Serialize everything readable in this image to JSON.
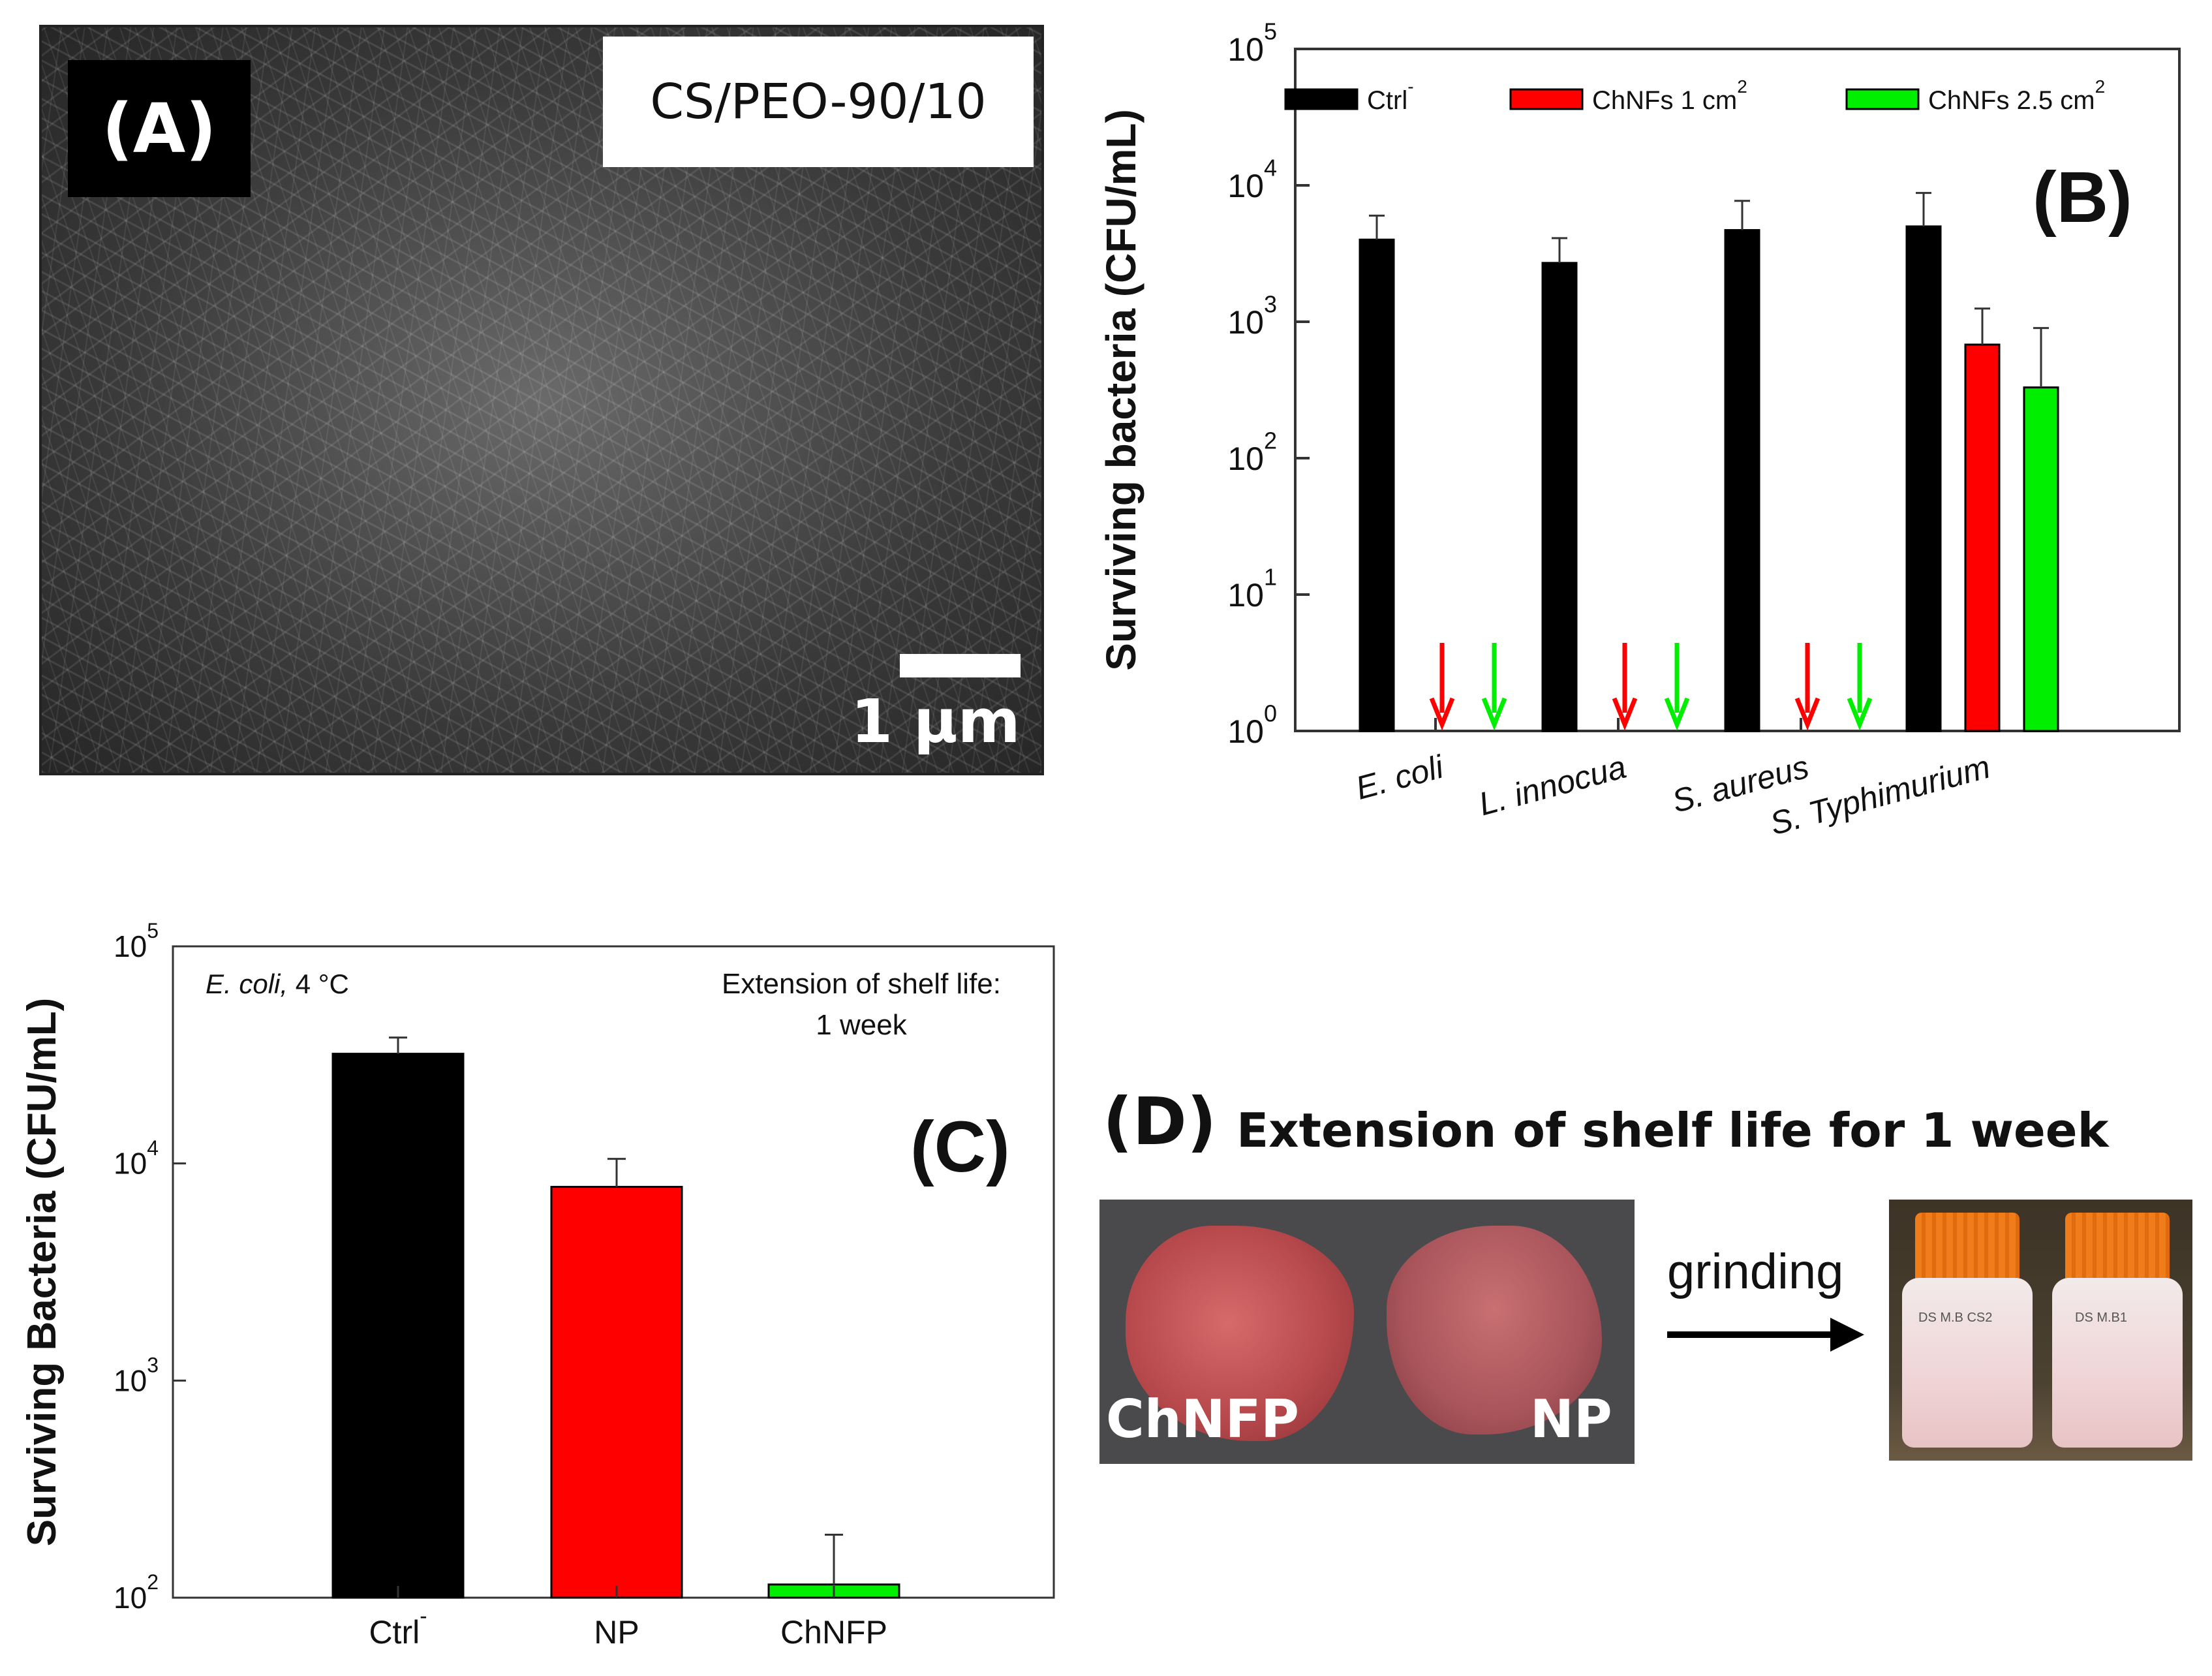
{
  "panel_a": {
    "label": "(A)",
    "sample": "CS/PEO-90/10",
    "scale_label": "1 µm"
  },
  "panel_d": {
    "label": "(D)",
    "title": "Extension of shelf life for 1 week",
    "left_sample": "ChNFP",
    "right_sample": "NP",
    "step_label": "grinding",
    "bottle_labels": [
      "DS M.B CS2",
      "DS M.B1"
    ]
  },
  "colors": {
    "ctrl": "#000000",
    "chnfs1": "#ff0000",
    "chnfs25": "#00ee00"
  },
  "chart_data": [
    {
      "id": "B",
      "type": "bar",
      "panel_label": "(B)",
      "yscale": "log",
      "ylim": [
        1,
        100000
      ],
      "ylabel": "Surviving bacteria (CFU/mL)",
      "yticks": [
        {
          "base": "10",
          "exp": "0"
        },
        {
          "base": "10",
          "exp": "1"
        },
        {
          "base": "10",
          "exp": "2"
        },
        {
          "base": "10",
          "exp": "3"
        },
        {
          "base": "10",
          "exp": "4"
        },
        {
          "base": "10",
          "exp": "5"
        }
      ],
      "categories": [
        "E. coli",
        "L. innocua",
        "S. aureus",
        "S. Typhimurium"
      ],
      "legend": [
        {
          "name": "Ctrl",
          "sup": "-"
        },
        {
          "name": "ChNFs 1 cm",
          "sup": "2"
        },
        {
          "name": "ChNFs 2.5 cm",
          "sup": "2"
        }
      ],
      "series": [
        {
          "name": "Ctrl-",
          "values": [
            4000,
            2700,
            4700,
            5000
          ],
          "errors": [
            6000,
            4100,
            7700,
            8800
          ]
        },
        {
          "name": "ChNFs 1 cm2",
          "values": [
            null,
            null,
            null,
            680
          ],
          "errors": [
            null,
            null,
            null,
            1250
          ],
          "below_detection": [
            true,
            true,
            true,
            false
          ]
        },
        {
          "name": "ChNFs 2.5 cm2",
          "values": [
            null,
            null,
            null,
            330
          ],
          "errors": [
            null,
            null,
            null,
            900
          ],
          "below_detection": [
            true,
            true,
            true,
            false
          ]
        }
      ]
    },
    {
      "id": "C",
      "type": "bar",
      "panel_label": "(C)",
      "yscale": "log",
      "ylim": [
        100,
        100000
      ],
      "ylabel": "Surviving Bacteria (CFU/mL)",
      "yticks": [
        {
          "base": "10",
          "exp": "2"
        },
        {
          "base": "10",
          "exp": "3"
        },
        {
          "base": "10",
          "exp": "4"
        },
        {
          "base": "10",
          "exp": "5"
        }
      ],
      "annotation": "E. coli,",
      "annotation_temp": "4 °C",
      "note_line1": "Extension of shelf life:",
      "note_line2": "1 week",
      "categories": [
        {
          "name": "Ctrl",
          "sup": "-"
        },
        {
          "name": "NP",
          "sup": ""
        },
        {
          "name": "ChNFP",
          "sup": ""
        }
      ],
      "values": [
        32000,
        7800,
        115
      ],
      "errors": [
        38000,
        10500,
        195
      ]
    }
  ]
}
